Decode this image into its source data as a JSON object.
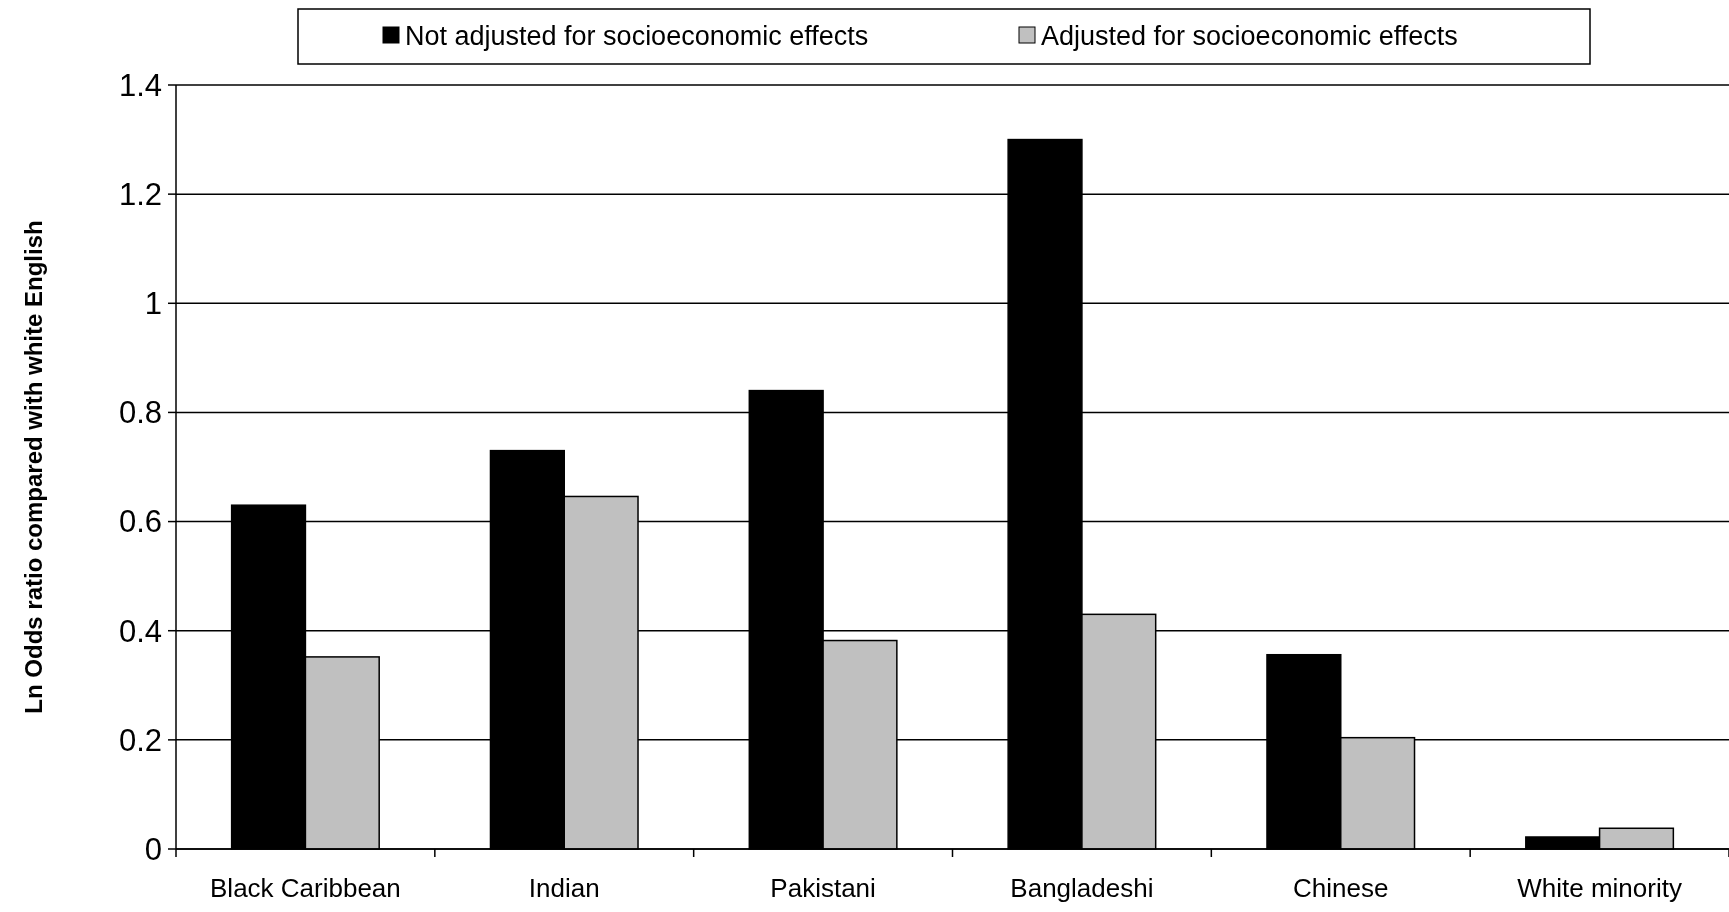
{
  "chart_data": {
    "type": "bar",
    "ylabel": "Ln Odds ratio compared with white English",
    "categories": [
      "Black Caribbean",
      "Indian",
      "Pakistani",
      "Bangladeshi",
      "Chinese",
      "White minority"
    ],
    "series": [
      {
        "name": "Not adjusted for socioeconomic effects",
        "color": "#000000",
        "values": [
          0.63,
          0.73,
          0.84,
          1.3,
          0.356,
          0.022
        ]
      },
      {
        "name": "Adjusted for socioeconomic effects",
        "color": "#c0c0c0",
        "values": [
          0.352,
          0.646,
          0.382,
          0.43,
          0.204,
          0.038
        ]
      }
    ],
    "ylim": [
      0,
      1.4
    ],
    "yticks": [
      0,
      0.2,
      0.4,
      0.6,
      0.8,
      1,
      1.2,
      1.4
    ],
    "grid": "y",
    "legend": "top"
  }
}
